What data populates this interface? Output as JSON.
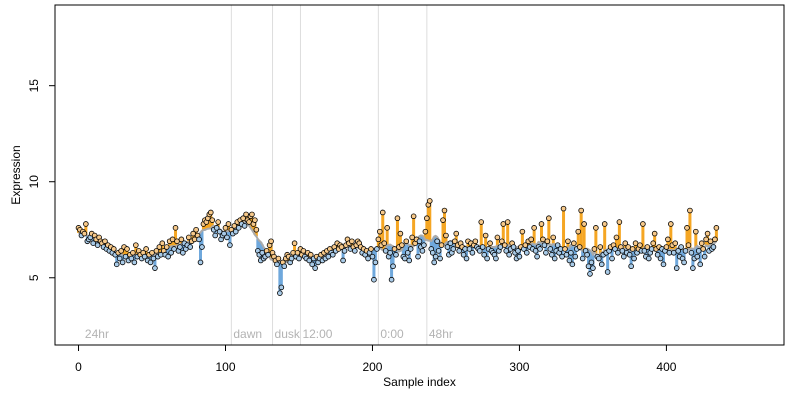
{
  "chart_data": {
    "type": "scatter",
    "title": "",
    "xlabel": "Sample index",
    "ylabel": "Expression",
    "xlim": [
      -16,
      480
    ],
    "ylim": [
      1.5,
      19.2
    ],
    "xticks": [
      0,
      100,
      200,
      300,
      400
    ],
    "yticks": [
      5,
      10,
      15
    ],
    "grid": false,
    "colors": {
      "above": "#f5a623",
      "below": "#6fa8dc",
      "baseline": "#aaaaaa",
      "point_stroke": "#000000",
      "divider": "#dddddd",
      "label": "#b3b3b3"
    },
    "phase_markers": [
      {
        "x": 3,
        "label": "24hr"
      },
      {
        "x": 104,
        "label": "dawn"
      },
      {
        "x": 132,
        "label": "dusk"
      },
      {
        "x": 151,
        "label": "12:00"
      },
      {
        "x": 204,
        "label": "0:00"
      },
      {
        "x": 237,
        "label": "48hr"
      }
    ],
    "dividers": [
      104,
      132,
      151,
      204,
      237
    ],
    "samples": [
      7.6,
      7.5,
      7.2,
      7.4,
      7.3,
      7.8,
      6.9,
      7.0,
      7.1,
      7.3,
      6.8,
      7.2,
      7.0,
      6.7,
      7.1,
      6.9,
      6.8,
      6.6,
      6.9,
      6.5,
      6.7,
      6.4,
      6.6,
      6.3,
      6.5,
      6.2,
      5.7,
      6.3,
      6.0,
      6.4,
      5.8,
      6.6,
      6.1,
      6.5,
      5.9,
      6.2,
      6.0,
      6.3,
      5.8,
      6.7,
      6.1,
      6.4,
      6.2,
      6.0,
      6.3,
      6.1,
      6.5,
      5.9,
      6.2,
      5.8,
      6.3,
      6.0,
      5.5,
      6.4,
      6.1,
      6.6,
      6.2,
      6.8,
      6.4,
      6.2,
      6.6,
      6.1,
      6.9,
      6.3,
      7.0,
      6.5,
      7.6,
      6.9,
      6.4,
      6.6,
      7.0,
      6.3,
      6.8,
      6.5,
      6.7,
      7.1,
      6.6,
      6.9,
      7.3,
      7.0,
      7.5,
      7.2,
      7.0,
      5.8,
      6.6,
      7.8,
      8.0,
      7.9,
      8.1,
      8.3,
      8.4,
      8.0,
      7.5,
      7.2,
      7.6,
      7.9,
      7.4,
      7.0,
      7.2,
      7.3,
      7.6,
      7.1,
      7.8,
      6.7,
      7.5,
      7.3,
      7.7,
      7.4,
      7.9,
      7.6,
      8.0,
      7.8,
      8.1,
      7.7,
      8.3,
      8.0,
      7.9,
      8.2,
      8.3,
      7.8,
      8.0,
      7.5,
      6.4,
      6.2,
      5.9,
      6.3,
      6.0,
      6.1,
      6.4,
      6.2,
      6.7,
      6.9,
      6.3,
      6.1,
      5.9,
      5.7,
      6.0,
      4.2,
      4.5,
      5.8,
      5.6,
      6.0,
      6.2,
      6.1,
      5.8,
      6.0,
      6.3,
      6.8,
      6.1,
      6.3,
      6.0,
      6.5,
      6.2,
      6.4,
      6.1,
      6.0,
      6.3,
      5.9,
      6.2,
      5.7,
      6.0,
      5.5,
      6.1,
      5.8,
      6.0,
      6.2,
      5.9,
      6.3,
      6.0,
      6.4,
      6.1,
      6.5,
      6.3,
      6.2,
      6.6,
      6.4,
      6.8,
      6.5,
      6.7,
      6.6,
      5.9,
      6.4,
      6.7,
      7.0,
      6.8,
      6.5,
      6.9,
      6.6,
      6.4,
      6.7,
      6.9,
      6.8,
      6.6,
      6.3,
      6.5,
      6.2,
      6.4,
      6.0,
      6.3,
      6.5,
      6.1,
      4.9,
      5.8,
      6.5,
      7.0,
      7.4,
      6.7,
      8.4,
      6.8,
      6.4,
      7.6,
      6.1,
      6.3,
      4.9,
      5.6,
      6.5,
      6.2,
      8.1,
      6.6,
      7.3,
      6.7,
      6.1,
      6.0,
      6.9,
      6.3,
      5.9,
      6.5,
      7.1,
      8.2,
      6.8,
      7.0,
      6.1,
      6.9,
      6.6,
      6.4,
      6.7,
      7.4,
      8.1,
      8.8,
      9.0,
      6.5,
      6.3,
      5.8,
      6.1,
      6.9,
      6.4,
      6.0,
      6.7,
      8.0,
      8.5,
      7.2,
      6.6,
      6.2,
      6.8,
      6.3,
      6.5,
      6.9,
      7.3,
      6.7,
      6.4,
      6.8,
      6.6,
      6.2,
      6.5,
      6.0,
      6.9,
      6.5,
      6.8,
      6.3,
      6.7,
      6.9,
      6.6,
      6.5,
      6.4,
      7.9,
      6.6,
      6.2,
      7.2,
      6.0,
      6.5,
      6.8,
      6.4,
      6.3,
      6.2,
      6.0,
      7.1,
      6.4,
      6.6,
      6.9,
      7.8,
      6.7,
      6.4,
      7.9,
      6.2,
      6.5,
      6.8,
      6.6,
      6.3,
      6.0,
      6.4,
      6.1,
      6.6,
      7.4,
      6.5,
      6.7,
      6.3,
      6.9,
      6.6,
      7.0,
      6.5,
      7.6,
      6.4,
      6.1,
      6.6,
      6.5,
      7.8,
      7.0,
      6.7,
      6.3,
      6.9,
      8.1,
      6.5,
      6.2,
      7.1,
      6.0,
      6.4,
      6.7,
      6.3,
      6.5,
      6.1,
      8.6,
      6.5,
      6.2,
      6.9,
      5.9,
      6.3,
      5.7,
      6.8,
      6.1,
      6.5,
      7.4,
      6.6,
      8.5,
      6.0,
      7.8,
      6.4,
      6.2,
      5.6,
      5.2,
      5.8,
      5.5,
      6.5,
      7.6,
      6.1,
      6.0,
      6.6,
      5.7,
      6.2,
      7.8,
      6.3,
      5.3,
      6.4,
      6.6,
      6.0,
      6.7,
      6.5,
      7.1,
      6.3,
      7.9,
      6.6,
      6.4,
      6.1,
      6.8,
      6.3,
      6.6,
      6.2,
      5.6,
      6.5,
      6.0,
      6.8,
      6.3,
      6.5,
      6.7,
      6.4,
      7.8,
      6.4,
      6.1,
      6.6,
      6.0,
      6.3,
      6.5,
      6.8,
      7.3,
      6.5,
      6.2,
      6.6,
      6.0,
      6.5,
      5.7,
      6.4,
      6.6,
      7.0,
      6.3,
      7.8,
      6.7,
      6.3,
      6.8,
      5.5,
      6.4,
      6.1,
      6.6,
      6.0,
      5.8,
      6.4,
      7.6,
      6.7,
      8.5,
      6.3,
      5.5,
      6.0,
      7.4,
      6.1,
      6.4,
      5.7,
      6.8,
      6.5,
      6.1,
      7.0,
      7.3,
      6.4,
      6.9,
      6.5,
      6.6,
      7.0,
      7.6
    ]
  }
}
